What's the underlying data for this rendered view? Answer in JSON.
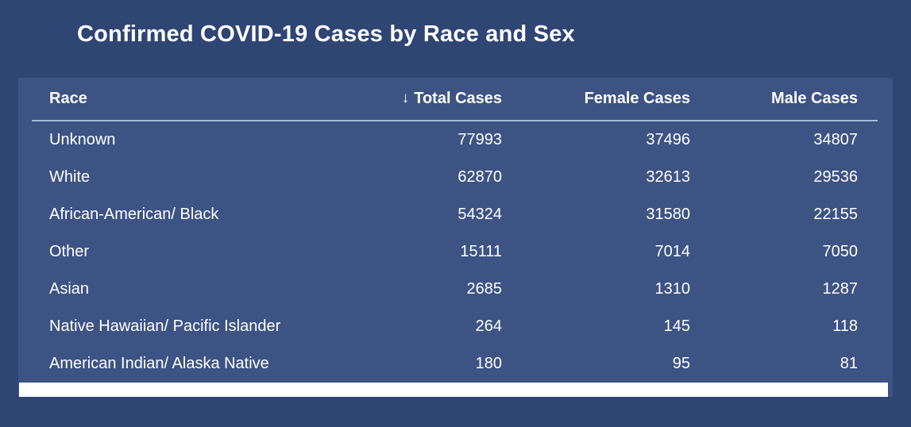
{
  "title": "Confirmed COVID-19 Cases by Race and Sex",
  "colors": {
    "background": "#2f4574",
    "panel": "#3c5384",
    "text": "#ffffff",
    "header_divider": "#a3bcda",
    "scrollbar": "#ffffff"
  },
  "table": {
    "sort_icon": "↓",
    "sorted_column": "Total Cases",
    "sort_direction": "descending",
    "columns": {
      "race": "Race",
      "total": "Total Cases",
      "female": "Female Cases",
      "male": "Male Cases"
    },
    "rows": [
      {
        "race": "Unknown",
        "total": "77993",
        "female": "37496",
        "male": "34807"
      },
      {
        "race": "White",
        "total": "62870",
        "female": "32613",
        "male": "29536"
      },
      {
        "race": "African-American/ Black",
        "total": "54324",
        "female": "31580",
        "male": "22155"
      },
      {
        "race": "Other",
        "total": "15111",
        "female": "7014",
        "male": "7050"
      },
      {
        "race": "Asian",
        "total": "2685",
        "female": "1310",
        "male": "1287"
      },
      {
        "race": "Native Hawaiian/ Pacific Islander",
        "total": "264",
        "female": "145",
        "male": "118"
      },
      {
        "race": "American Indian/ Alaska Native",
        "total": "180",
        "female": "95",
        "male": "81"
      }
    ]
  },
  "chart_data": {
    "type": "table",
    "title": "Confirmed COVID-19 Cases by Race and Sex",
    "categories": [
      "Unknown",
      "White",
      "African-American/ Black",
      "Other",
      "Asian",
      "Native Hawaiian/ Pacific Islander",
      "American Indian/ Alaska Native"
    ],
    "series": [
      {
        "name": "Total Cases",
        "values": [
          77993,
          62870,
          54324,
          15111,
          2685,
          264,
          180
        ]
      },
      {
        "name": "Female Cases",
        "values": [
          37496,
          32613,
          31580,
          7014,
          1310,
          145,
          95
        ]
      },
      {
        "name": "Male Cases",
        "values": [
          34807,
          29536,
          22155,
          7050,
          1287,
          118,
          81
        ]
      }
    ],
    "layout": {
      "sorted_by": "Total Cases descending",
      "grid": "off",
      "legend": "none"
    }
  }
}
